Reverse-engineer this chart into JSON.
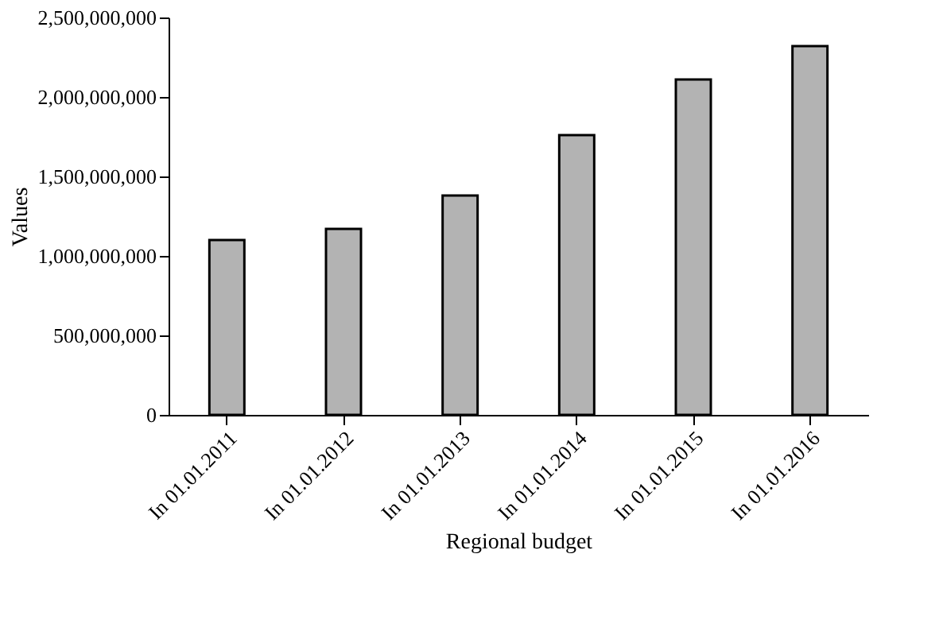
{
  "chart_data": {
    "type": "bar",
    "xlabel": "Regional budget",
    "ylabel": "Values",
    "categories": [
      "In 01.01.2011",
      "In 01.01.2012",
      "In 01.01.2013",
      "In 01.01.2014",
      "In 01.01.2015",
      "In 01.01.2016"
    ],
    "values": [
      1100000000,
      1170000000,
      1380000000,
      1760000000,
      2110000000,
      2320000000
    ],
    "color": "#b3b3b3",
    "ylim": [
      0,
      2500000000
    ],
    "yticks": [
      0,
      {
        "value": 500000000,
        "label": "500,000,000"
      },
      {
        "value": 1000000000,
        "label": "1,000,000,000"
      },
      {
        "value": 1500000000,
        "label": "1,500,000,000"
      },
      {
        "value": 2000000000,
        "label": "2,000,000,000"
      },
      {
        "value": 2500000000,
        "label": "2,500,000,000"
      }
    ],
    "grid": false
  }
}
